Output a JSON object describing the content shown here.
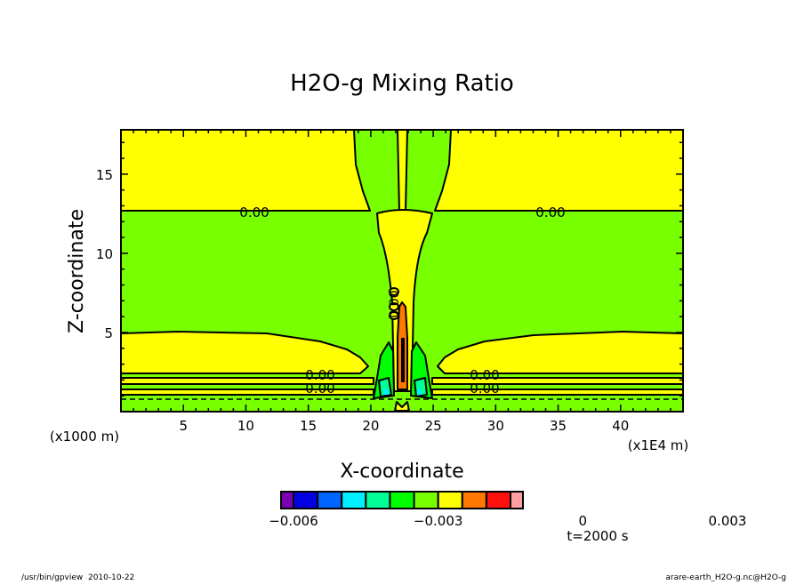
{
  "chart_data": {
    "type": "heatmap",
    "subtype": "filled-contour",
    "title": "H2O-g Mixing Ratio",
    "xlabel": "X-coordinate",
    "ylabel": "Z-coordinate",
    "x_units": "(x1E4 m)",
    "y_units": "(x1000 m)",
    "xlim": [
      0,
      45
    ],
    "ylim": [
      0,
      17.8
    ],
    "x_ticks": [
      "5",
      "10",
      "15",
      "20",
      "25",
      "30",
      "35",
      "40"
    ],
    "x_tick_values": [
      5,
      10,
      15,
      20,
      25,
      30,
      35,
      40
    ],
    "y_ticks": [
      "5",
      "10",
      "15"
    ],
    "y_tick_values": [
      5,
      10,
      15
    ],
    "contour_labels": [
      "0.00",
      "0.00",
      "0.00",
      "0.00",
      "0.00",
      "0.00",
      "0.00"
    ],
    "colorbar": {
      "colors": [
        "#7a00b4",
        "#0000e0",
        "#0064ff",
        "#00f0ff",
        "#00ff96",
        "#00ff00",
        "#78ff00",
        "#ffff00",
        "#ff7800",
        "#ff1010",
        "#ffa0a0"
      ],
      "tick_labels": [
        "-0.006",
        "-0.003",
        "0",
        "0.003"
      ],
      "tick_values": [
        -0.006,
        -0.003,
        0,
        0.003
      ]
    },
    "time_label": "t=2000 s"
  },
  "footer": {
    "left": "/usr/bin/gpview  2010-10-22",
    "right": "arare-earth_H2O-g.nc@H2O-g"
  }
}
